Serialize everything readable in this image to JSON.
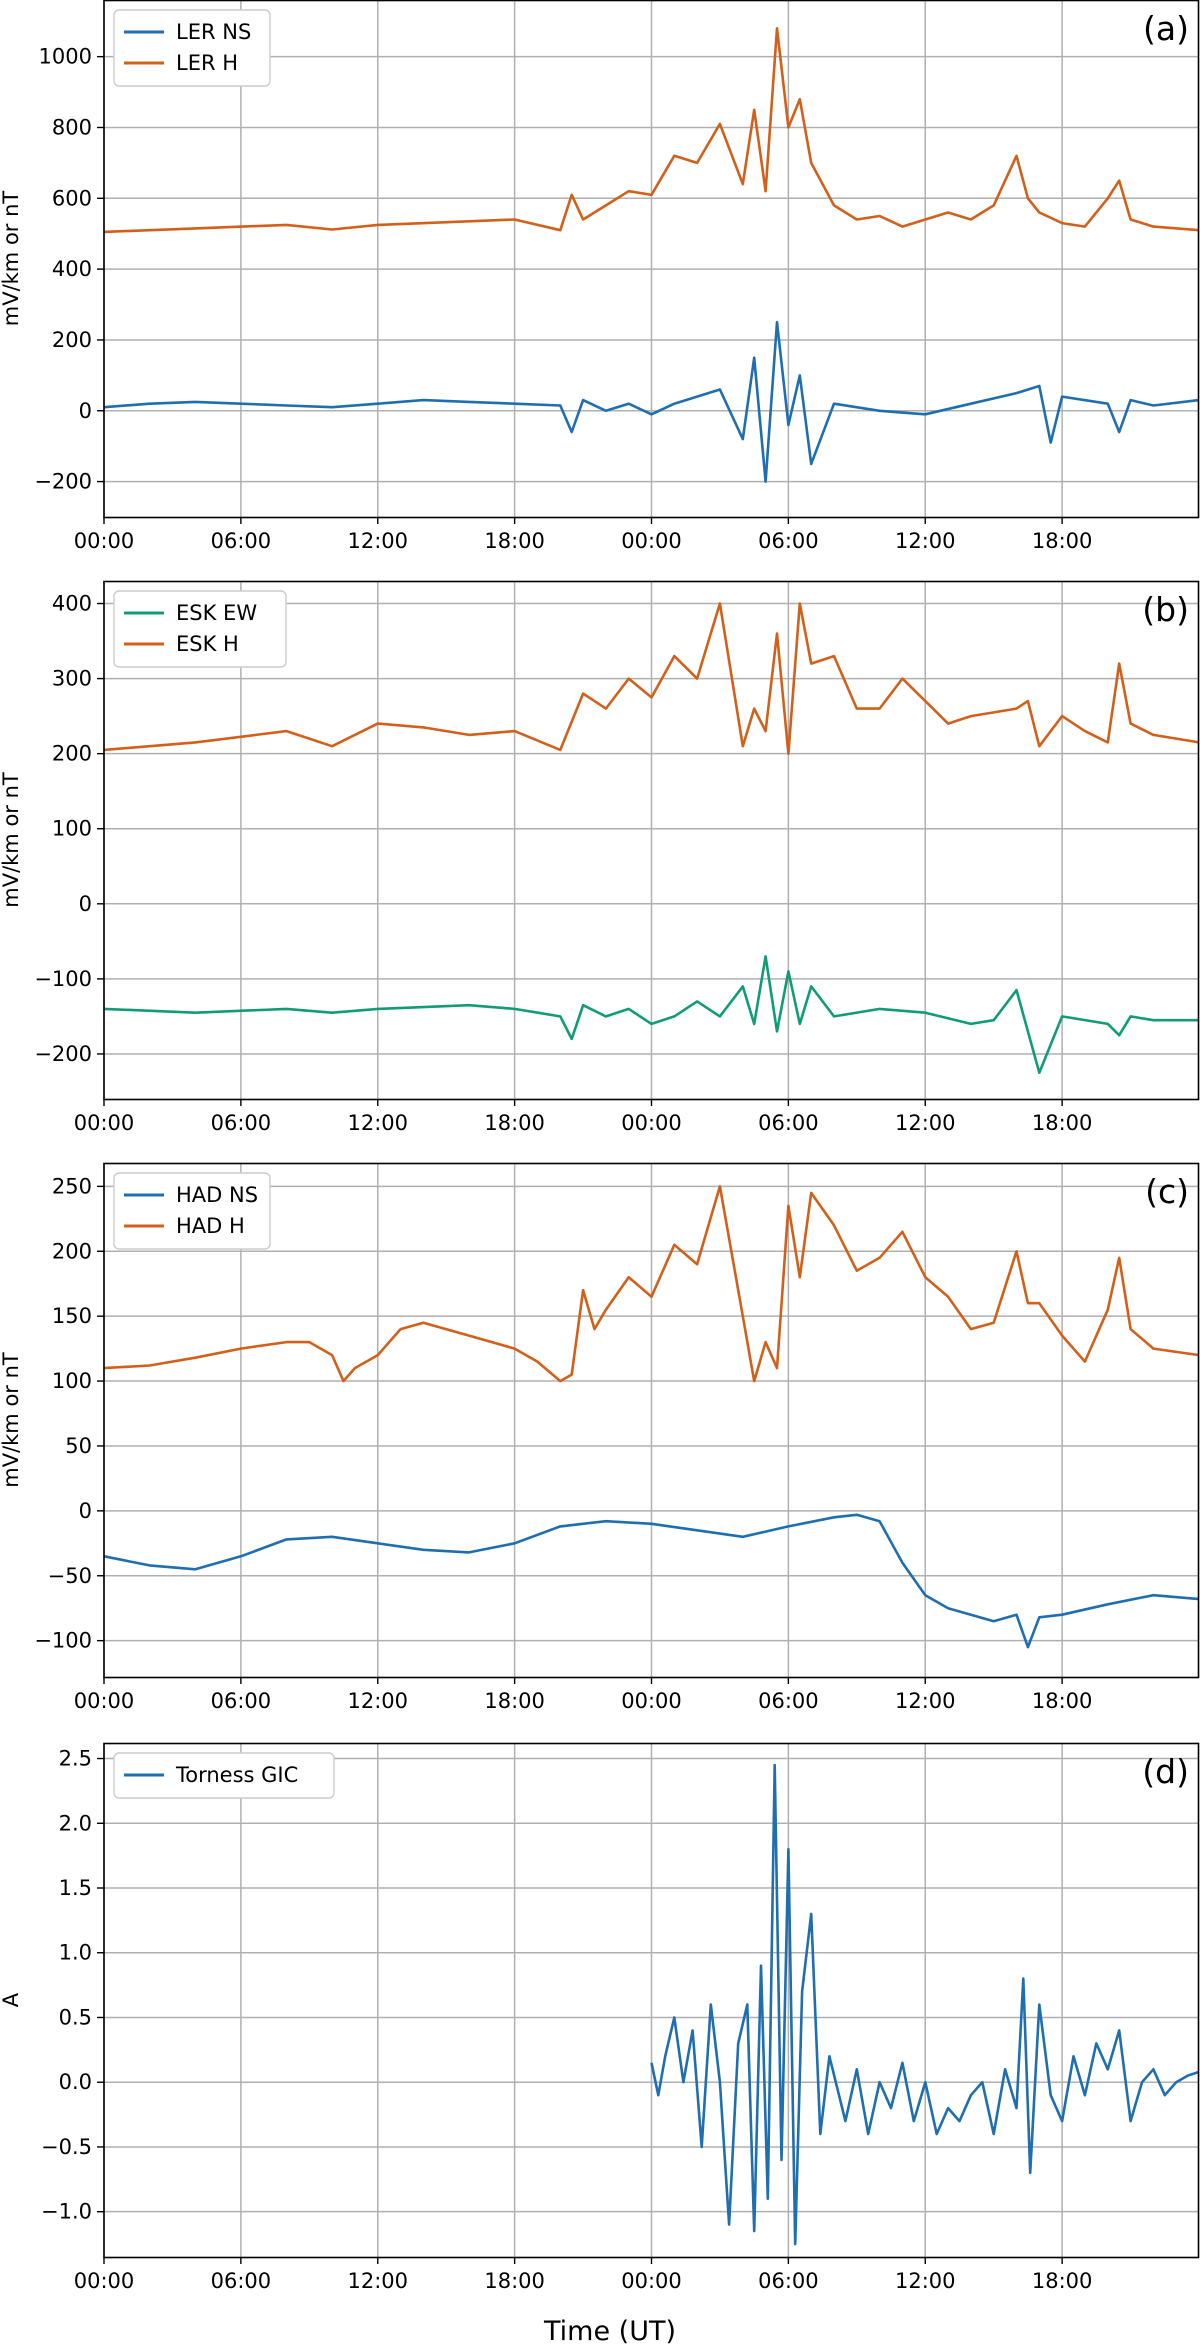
{
  "figure": {
    "xlabel": "Time (UT)"
  },
  "colors": {
    "blue": "#1f6eb0",
    "orange": "#d2601a",
    "green": "#109c76",
    "grid": "#b0b0b0"
  },
  "chart_data": [
    {
      "type": "line",
      "panel_label": "(a)",
      "ylabel": "mV/km or nT",
      "ylim": [
        -300,
        1160
      ],
      "yticks": [
        -200,
        0,
        200,
        400,
        600,
        800,
        1000
      ],
      "xlim": [
        0,
        48
      ],
      "xticks": [
        0,
        6,
        12,
        18,
        24,
        30,
        36,
        42
      ],
      "xticklabels": [
        "00:00",
        "06:00",
        "12:00",
        "18:00",
        "00:00",
        "06:00",
        "12:00",
        "18:00"
      ],
      "grid": true,
      "legend": "top-left",
      "series": [
        {
          "name": "LER NS",
          "color": "blue",
          "x": [
            0,
            2,
            4,
            6,
            8,
            10,
            12,
            14,
            16,
            18,
            20,
            20.5,
            21,
            22,
            23,
            24,
            25,
            26,
            27,
            28,
            28.5,
            29,
            29.5,
            30,
            30.5,
            31,
            32,
            34,
            36,
            38,
            40,
            41,
            41.5,
            42,
            44,
            44.5,
            45,
            46,
            48
          ],
          "y": [
            10,
            20,
            25,
            20,
            15,
            10,
            20,
            30,
            25,
            20,
            15,
            -60,
            30,
            0,
            20,
            -10,
            20,
            40,
            60,
            -80,
            150,
            -200,
            250,
            -40,
            100,
            -150,
            20,
            0,
            -10,
            20,
            50,
            70,
            -90,
            40,
            20,
            -60,
            30,
            15,
            30
          ]
        },
        {
          "name": "LER H",
          "color": "orange",
          "x": [
            0,
            4,
            8,
            10,
            12,
            16,
            18,
            20,
            20.5,
            21,
            22,
            23,
            24,
            25,
            26,
            27,
            28,
            28.5,
            29,
            29.5,
            30,
            30.5,
            31,
            32,
            33,
            34,
            35,
            36,
            37,
            38,
            39,
            40,
            40.5,
            41,
            42,
            43,
            44,
            44.5,
            45,
            46,
            48
          ],
          "y": [
            505,
            515,
            525,
            512,
            525,
            535,
            540,
            510,
            610,
            540,
            580,
            620,
            610,
            720,
            700,
            810,
            640,
            850,
            620,
            1080,
            800,
            880,
            700,
            580,
            540,
            550,
            520,
            540,
            560,
            540,
            580,
            720,
            600,
            560,
            530,
            520,
            600,
            650,
            540,
            520,
            510
          ]
        }
      ]
    },
    {
      "type": "line",
      "panel_label": "(b)",
      "ylabel": "mV/km or nT",
      "ylim": [
        -260,
        430
      ],
      "yticks": [
        -200,
        -100,
        0,
        100,
        200,
        300,
        400
      ],
      "xlim": [
        0,
        48
      ],
      "xticks": [
        0,
        6,
        12,
        18,
        24,
        30,
        36,
        42
      ],
      "xticklabels": [
        "00:00",
        "06:00",
        "12:00",
        "18:00",
        "00:00",
        "06:00",
        "12:00",
        "18:00"
      ],
      "grid": true,
      "legend": "top-left",
      "series": [
        {
          "name": "ESK EW",
          "color": "green",
          "x": [
            0,
            4,
            8,
            10,
            12,
            16,
            18,
            20,
            20.5,
            21,
            22,
            23,
            24,
            25,
            26,
            27,
            28,
            28.5,
            29,
            29.5,
            30,
            30.5,
            31,
            32,
            34,
            36,
            38,
            39,
            40,
            40.5,
            41,
            42,
            44,
            44.5,
            45,
            46,
            48
          ],
          "y": [
            -140,
            -145,
            -140,
            -145,
            -140,
            -135,
            -140,
            -150,
            -180,
            -135,
            -150,
            -140,
            -160,
            -150,
            -130,
            -150,
            -110,
            -160,
            -70,
            -170,
            -90,
            -160,
            -110,
            -150,
            -140,
            -145,
            -160,
            -155,
            -115,
            -170,
            -225,
            -150,
            -160,
            -175,
            -150,
            -155,
            -155
          ]
        },
        {
          "name": "ESK H",
          "color": "orange",
          "x": [
            0,
            4,
            8,
            10,
            12,
            14,
            16,
            18,
            20,
            21,
            22,
            23,
            24,
            25,
            26,
            27,
            28,
            28.5,
            29,
            29.5,
            30,
            30.5,
            31,
            32,
            33,
            34,
            35,
            36,
            37,
            38,
            40,
            40.5,
            41,
            42,
            43,
            44,
            44.5,
            45,
            46,
            48
          ],
          "y": [
            205,
            215,
            230,
            210,
            240,
            235,
            225,
            230,
            205,
            280,
            260,
            300,
            275,
            330,
            300,
            400,
            210,
            260,
            230,
            360,
            200,
            400,
            320,
            330,
            260,
            260,
            300,
            270,
            240,
            250,
            260,
            270,
            210,
            250,
            230,
            215,
            320,
            240,
            225,
            215
          ]
        }
      ]
    },
    {
      "type": "line",
      "panel_label": "(c)",
      "ylabel": "mV/km or nT",
      "ylim": [
        -128,
        268
      ],
      "yticks": [
        -100,
        -50,
        0,
        50,
        100,
        150,
        200,
        250
      ],
      "xlim": [
        0,
        48
      ],
      "xticks": [
        0,
        6,
        12,
        18,
        24,
        30,
        36,
        42
      ],
      "xticklabels": [
        "00:00",
        "06:00",
        "12:00",
        "18:00",
        "00:00",
        "06:00",
        "12:00",
        "18:00"
      ],
      "grid": true,
      "legend": "top-left",
      "series": [
        {
          "name": "HAD NS",
          "color": "blue",
          "x": [
            0,
            2,
            4,
            6,
            8,
            10,
            12,
            14,
            16,
            18,
            20,
            22,
            24,
            26,
            28,
            30,
            32,
            33,
            34,
            35,
            36,
            37,
            38,
            39,
            40,
            40.5,
            41,
            42,
            44,
            46,
            48
          ],
          "y": [
            -35,
            -42,
            -45,
            -35,
            -22,
            -20,
            -25,
            -30,
            -32,
            -25,
            -12,
            -8,
            -10,
            -15,
            -20,
            -12,
            -5,
            -3,
            -8,
            -40,
            -65,
            -75,
            -80,
            -85,
            -80,
            -105,
            -82,
            -80,
            -72,
            -65,
            -68
          ]
        },
        {
          "name": "HAD H",
          "color": "orange",
          "x": [
            0,
            2,
            4,
            6,
            8,
            9,
            10,
            10.5,
            11,
            12,
            13,
            14,
            16,
            18,
            19,
            20,
            20.5,
            21,
            21.5,
            22,
            23,
            24,
            25,
            26,
            27,
            28,
            28.5,
            29,
            29.5,
            30,
            30.5,
            31,
            32,
            33,
            34,
            35,
            36,
            37,
            38,
            39,
            40,
            40.5,
            41,
            42,
            43,
            44,
            44.5,
            45,
            46,
            48
          ],
          "y": [
            110,
            112,
            118,
            125,
            130,
            130,
            120,
            100,
            110,
            120,
            140,
            145,
            135,
            125,
            115,
            100,
            105,
            170,
            140,
            155,
            180,
            165,
            205,
            190,
            250,
            150,
            100,
            130,
            110,
            235,
            180,
            245,
            220,
            185,
            195,
            215,
            180,
            165,
            140,
            145,
            200,
            160,
            160,
            135,
            115,
            155,
            195,
            140,
            125,
            120
          ]
        }
      ]
    },
    {
      "type": "line",
      "panel_label": "(d)",
      "ylabel": "A",
      "ylim": [
        -1.35,
        2.62
      ],
      "yticks": [
        -1.0,
        -0.5,
        0.0,
        0.5,
        1.0,
        1.5,
        2.0,
        2.5
      ],
      "xlim": [
        0,
        48
      ],
      "xticks": [
        0,
        6,
        12,
        18,
        24,
        30,
        36,
        42
      ],
      "xticklabels": [
        "00:00",
        "06:00",
        "12:00",
        "18:00",
        "00:00",
        "06:00",
        "12:00",
        "18:00"
      ],
      "grid": true,
      "legend": "top-left",
      "series": [
        {
          "name": "Torness GIC",
          "color": "blue",
          "x": [
            24,
            24.3,
            24.6,
            25,
            25.4,
            25.8,
            26.2,
            26.6,
            27,
            27.4,
            27.8,
            28.2,
            28.5,
            28.8,
            29.1,
            29.4,
            29.7,
            30,
            30.3,
            30.6,
            31,
            31.4,
            31.8,
            32.5,
            33,
            33.5,
            34,
            34.5,
            35,
            35.5,
            36,
            36.5,
            37,
            37.5,
            38,
            38.5,
            39,
            39.5,
            40,
            40.3,
            40.6,
            41,
            41.5,
            42,
            42.5,
            43,
            43.5,
            44,
            44.5,
            45,
            45.5,
            46,
            46.5,
            47,
            47.5,
            48
          ],
          "y": [
            0.15,
            -0.1,
            0.2,
            0.5,
            0.0,
            0.4,
            -0.5,
            0.6,
            0.0,
            -1.1,
            0.3,
            0.6,
            -1.15,
            0.9,
            -0.9,
            2.45,
            -0.6,
            1.8,
            -1.25,
            0.7,
            1.3,
            -0.4,
            0.2,
            -0.3,
            0.1,
            -0.4,
            0.0,
            -0.2,
            0.15,
            -0.3,
            0.0,
            -0.4,
            -0.2,
            -0.3,
            -0.1,
            0.0,
            -0.4,
            0.1,
            -0.2,
            0.8,
            -0.7,
            0.6,
            -0.1,
            -0.3,
            0.2,
            -0.1,
            0.3,
            0.1,
            0.4,
            -0.3,
            0.0,
            0.1,
            -0.1,
            0.0,
            0.05,
            0.08
          ]
        }
      ]
    }
  ]
}
